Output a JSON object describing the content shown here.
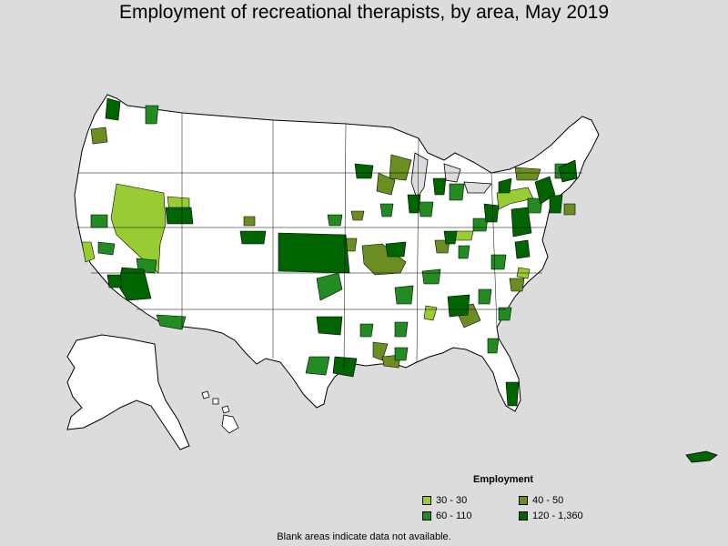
{
  "title": "Employment of recreational therapists, by area, May 2019",
  "legend": {
    "title": "Employment",
    "items": [
      {
        "label": "30 - 30",
        "color": "#99cc33"
      },
      {
        "label": "40 - 50",
        "color": "#6b8e23"
      },
      {
        "label": "60 - 110",
        "color": "#228b22"
      },
      {
        "label": "120 - 1,360",
        "color": "#006400"
      }
    ]
  },
  "footnote": "Blank areas indicate data not available.",
  "colors": {
    "background": "#dcdcdc",
    "land": "#ffffff",
    "border": "#000000"
  }
}
